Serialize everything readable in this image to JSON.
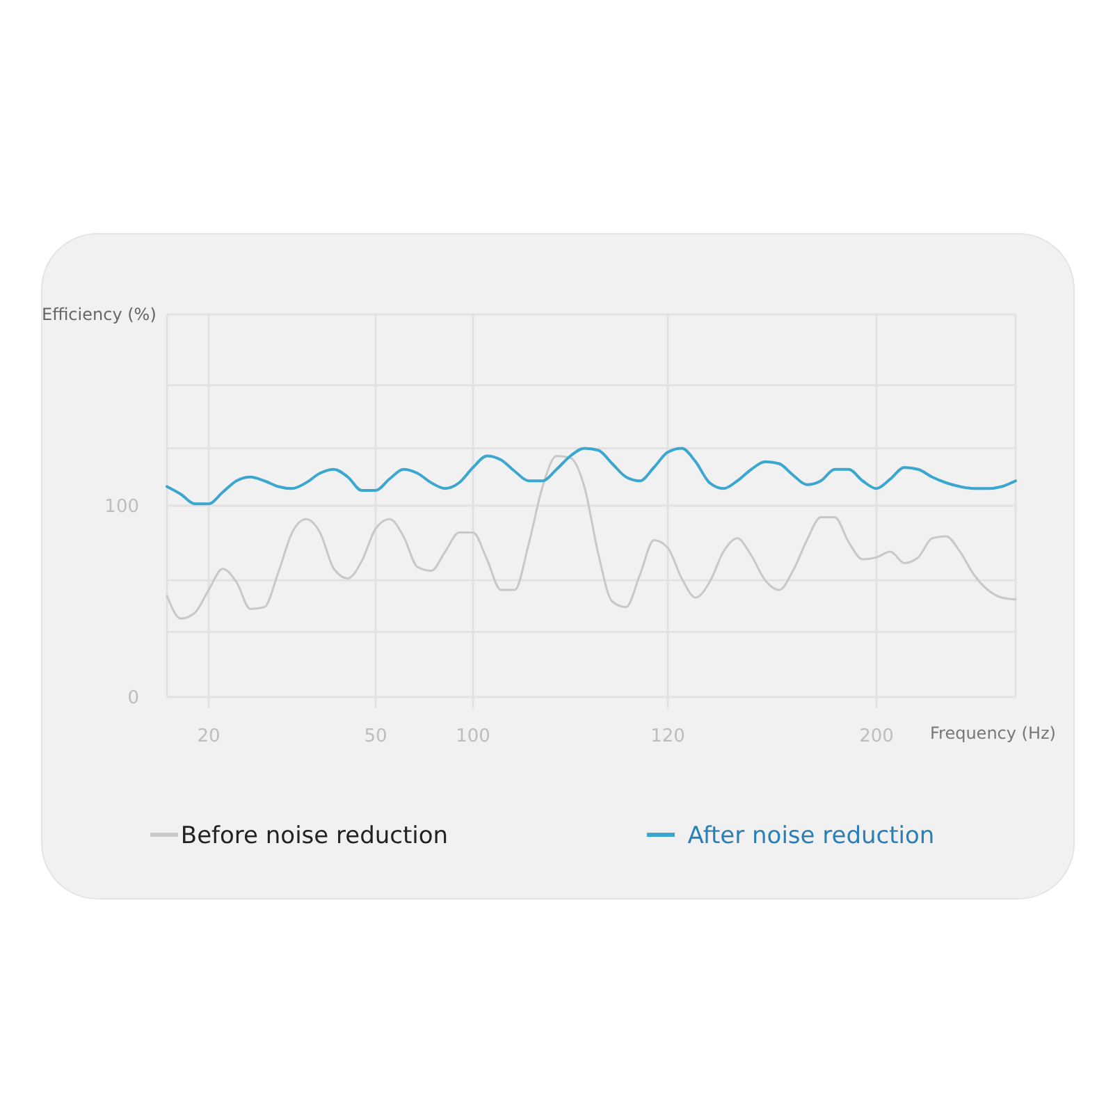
{
  "chart_data": {
    "type": "line",
    "xlabel": "Frequency (Hz)",
    "ylabel": "Efficiency (%)",
    "categories": [
      null,
      null,
      null,
      "20",
      null,
      null,
      null,
      null,
      null,
      null,
      null,
      null,
      null,
      null,
      null,
      "50",
      null,
      null,
      null,
      null,
      null,
      null,
      "100",
      null,
      null,
      null,
      null,
      null,
      null,
      null,
      null,
      null,
      null,
      null,
      null,
      null,
      "120",
      null,
      null,
      null,
      null,
      null,
      null,
      null,
      null,
      null,
      null,
      null,
      null,
      null,
      null,
      "200",
      null,
      null,
      null,
      null,
      null,
      null,
      null,
      null,
      null,
      null
    ],
    "series": [
      {
        "name": "Before noise reduction",
        "color": "#c8c8c8",
        "values": [
          53,
          41,
          44,
          56,
          67,
          60,
          46,
          47,
          65,
          86,
          93,
          86,
          67,
          62,
          71,
          88,
          93,
          84,
          68,
          66,
          76,
          86,
          86,
          72,
          56,
          56,
          80,
          110,
          126,
          125,
          110,
          75,
          50,
          47,
          64,
          82,
          78,
          62,
          52,
          60,
          76,
          83,
          74,
          61,
          56,
          66,
          82,
          94,
          94,
          81,
          72,
          73,
          76,
          70,
          73,
          83,
          84,
          76,
          64,
          56,
          52,
          51
        ]
      },
      {
        "name": "After noise reduction",
        "color": "#3ba7d0",
        "values": [
          110,
          106,
          101,
          101,
          107,
          113,
          115,
          113,
          110,
          109,
          112,
          117,
          119,
          115,
          108,
          108,
          114,
          119,
          117,
          112,
          109,
          112,
          120,
          126,
          124,
          118,
          113,
          113,
          119,
          126,
          130,
          129,
          122,
          115,
          113,
          120,
          128,
          130,
          123,
          112,
          109,
          113,
          119,
          123,
          122,
          116,
          111,
          113,
          119,
          119,
          113,
          109,
          114,
          120,
          119,
          115,
          112,
          110,
          109,
          109,
          110,
          113
        ]
      }
    ],
    "ylim": [
      0,
      200
    ],
    "yticks": [
      0,
      {
        "value": 34,
        "label": null
      },
      {
        "value": 61,
        "label": null
      },
      100,
      {
        "value": 130,
        "label": null
      },
      {
        "value": 163,
        "label": null
      },
      {
        "value": 200,
        "label": null
      }
    ],
    "grid": true,
    "legend": "bottom"
  }
}
